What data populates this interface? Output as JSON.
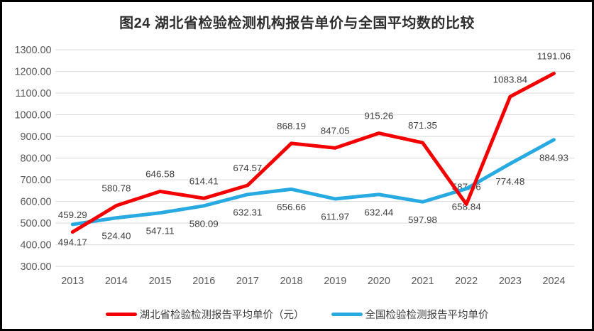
{
  "title": "图24 湖北省检验检测机构报告单价与全国平均数的比较",
  "colors": {
    "hubei_line": "#f40000",
    "national_line": "#27aae1",
    "gridline": "#d9d9d9",
    "axis_text": "#595959",
    "data_label_text": "#404040",
    "frame_border": "#000000"
  },
  "chart_data": {
    "type": "line",
    "title": "图24 湖北省检验检测机构报告单价与全国平均数的比较",
    "categories": [
      "2013",
      "2014",
      "2015",
      "2016",
      "2017",
      "2018",
      "2019",
      "2020",
      "2021",
      "2022",
      "2023",
      "2024"
    ],
    "series": [
      {
        "name": "湖北省检验检测报告平均单价（元）",
        "color": "#f40000",
        "label_position": "above",
        "values": [
          459.29,
          580.78,
          646.58,
          614.41,
          674.57,
          868.19,
          847.05,
          915.26,
          871.35,
          587.46,
          1083.84,
          1191.06
        ]
      },
      {
        "name": "全国检验检测报告平均单价",
        "color": "#27aae1",
        "label_position": "below",
        "values": [
          494.17,
          524.4,
          547.11,
          580.09,
          632.31,
          656.66,
          611.97,
          632.44,
          597.98,
          658.84,
          774.48,
          884.93
        ]
      }
    ],
    "ylim": [
      300,
      1300
    ],
    "ytick_step": 100,
    "ytick_decimals": 2,
    "grid": true,
    "legend_position": "bottom",
    "xlabel": "",
    "ylabel": ""
  },
  "legend": {
    "items": [
      {
        "label": "湖北省检验检测报告平均单价（元）"
      },
      {
        "label": "全国检验检测报告平均单价"
      }
    ]
  }
}
